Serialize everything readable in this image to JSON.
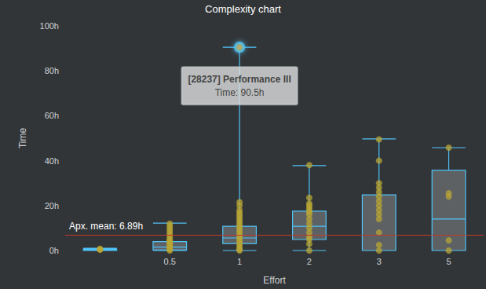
{
  "chart_data": {
    "type": "boxplot",
    "title": "Complexity chart",
    "x_label": "Effort",
    "y_label": "Time",
    "categories": [
      null,
      "0.5",
      "1",
      "2",
      "3",
      "5"
    ],
    "series": [
      {
        "type": "boxplot",
        "color": "#4fc3f7",
        "values": [
          [
            0,
            0.2,
            0.4,
            0.6,
            1
          ],
          [
            0,
            0.2,
            1.5,
            4,
            12.2
          ],
          [
            0,
            3.1,
            5.6,
            10.8,
            90.5
          ],
          [
            0,
            4.9,
            10.8,
            17.5,
            37.8
          ],
          [
            0,
            0,
            0,
            24.8,
            49.7
          ],
          [
            0,
            0,
            14,
            35.7,
            45.8
          ]
        ]
      },
      {
        "type": "scatter",
        "color": "#b8a535",
        "marker": "circle",
        "values": [
          [
            0.3,
            0.5,
            0.8
          ],
          [
            0,
            0.5,
            1,
            1.5,
            2,
            2.5,
            3,
            3.5,
            4,
            4.5,
            5,
            6,
            7,
            8,
            9,
            10,
            11,
            12
          ],
          [
            0,
            0.5,
            1,
            2,
            3,
            4,
            5,
            6,
            7,
            8,
            9,
            10,
            11,
            12,
            13,
            14,
            15,
            16,
            17,
            18,
            20,
            21.5,
            90.5
          ],
          [
            0,
            3,
            5,
            6,
            8,
            10,
            12,
            14,
            16,
            17,
            18,
            19,
            20,
            21,
            23.5,
            38
          ],
          [
            0,
            2.5,
            8,
            14,
            16,
            18,
            20,
            22,
            24,
            26,
            28,
            30,
            40,
            49.5
          ],
          [
            0,
            4.5,
            24,
            25.5,
            45.8
          ]
        ]
      }
    ],
    "ylim": [
      0,
      100
    ],
    "yticks": [
      {
        "value": 0,
        "label": "0h"
      },
      {
        "value": 20,
        "label": "20h"
      },
      {
        "value": 40,
        "label": "40h"
      },
      {
        "value": 60,
        "label": "60h"
      },
      {
        "value": 80,
        "label": "80h"
      },
      {
        "value": 100,
        "label": "100h"
      }
    ],
    "grid": false,
    "annotations": [
      {
        "type": "hline",
        "y": 6.89,
        "text": "Apx. mean: 6.89h",
        "color": "#c0392b"
      },
      {
        "type": "tooltip",
        "x": "1",
        "y": 90.5,
        "title": "[28237] Performance III",
        "text": "Time: 90.5h"
      }
    ]
  }
}
